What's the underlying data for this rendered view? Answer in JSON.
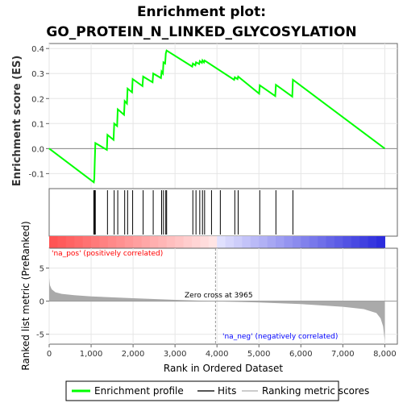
{
  "title_line1": "Enrichment plot:",
  "title_line2": "GO_PROTEIN_N_LINKED_GLYCOSYLATION",
  "chart_data": [
    {
      "type": "line",
      "panel": "enrichment",
      "ylabel": "Enrichment score (ES)",
      "ylim": [
        -0.16,
        0.42
      ],
      "yticks": [
        -0.1,
        0.0,
        0.1,
        0.2,
        0.3,
        0.4
      ],
      "ytick_labels": [
        "-0.1",
        "0.0",
        "0.1",
        "0.2",
        "0.3",
        "0.4"
      ],
      "xlim": [
        0,
        8300
      ],
      "grid": true,
      "zero_line": true,
      "series": [
        {
          "name": "Enrichment profile",
          "color": "#00ff00",
          "x": [
            0,
            1065,
            1075,
            1085,
            1100,
            1375,
            1390,
            1535,
            1550,
            1620,
            1635,
            1785,
            1800,
            1855,
            1870,
            1975,
            1990,
            2225,
            2240,
            2465,
            2480,
            2665,
            2680,
            2710,
            2725,
            2765,
            2780,
            2800,
            3410,
            3425,
            3485,
            3500,
            3575,
            3590,
            3640,
            3655,
            3690,
            3705,
            4410,
            4425,
            4490,
            4505,
            5005,
            5020,
            5390,
            5405,
            5795,
            5810,
            8000
          ],
          "y": [
            0.0,
            -0.135,
            -0.12,
            -0.06,
            0.022,
            -0.005,
            0.055,
            0.035,
            0.1,
            0.09,
            0.157,
            0.135,
            0.19,
            0.18,
            0.24,
            0.225,
            0.278,
            0.25,
            0.288,
            0.265,
            0.3,
            0.282,
            0.308,
            0.3,
            0.345,
            0.34,
            0.38,
            0.392,
            0.328,
            0.34,
            0.333,
            0.345,
            0.338,
            0.35,
            0.343,
            0.353,
            0.345,
            0.352,
            0.275,
            0.285,
            0.278,
            0.288,
            0.22,
            0.253,
            0.21,
            0.255,
            0.208,
            0.275,
            0.0
          ]
        }
      ]
    },
    {
      "type": "scatter",
      "panel": "hits",
      "name": "Hits",
      "color": "#000000",
      "x": [
        1065,
        1075,
        1085,
        1100,
        1390,
        1550,
        1635,
        1800,
        1870,
        1990,
        2240,
        2480,
        2680,
        2725,
        2780,
        2800,
        3425,
        3500,
        3590,
        3655,
        3705,
        3870,
        4080,
        4425,
        4505,
        5020,
        5405,
        5810
      ]
    },
    {
      "type": "area",
      "panel": "ranking",
      "name": "Ranking metric scores",
      "ylabel": "Ranked list metric (PreRanked)",
      "xlabel": "Rank in Ordered Dataset",
      "ylim": [
        -6.5,
        8.0
      ],
      "yticks": [
        -5,
        0,
        5
      ],
      "ytick_labels": [
        "-5",
        "0",
        "5"
      ],
      "xticks": [
        0,
        1000,
        2000,
        3000,
        4000,
        5000,
        6000,
        7000,
        8000
      ],
      "xtick_labels": [
        "0",
        "1,000",
        "2,000",
        "3,000",
        "4,000",
        "5,000",
        "6,000",
        "7,000",
        "8,000"
      ],
      "x": [
        0,
        20,
        60,
        150,
        300,
        600,
        1000,
        2000,
        3000,
        3965,
        5000,
        6000,
        7000,
        7500,
        7800,
        7900,
        7960,
        8000
      ],
      "y": [
        3.5,
        2.4,
        1.8,
        1.35,
        1.1,
        0.9,
        0.72,
        0.45,
        0.2,
        0.0,
        -0.2,
        -0.45,
        -0.85,
        -1.2,
        -1.8,
        -2.6,
        -3.8,
        -6.0
      ],
      "color": "#aaaaaa",
      "zero_cross": 3965,
      "zero_cross_label": "Zero cross at 3965",
      "pos_label": "'na_pos' (positively correlated)",
      "neg_label": "'na_neg' (negatively correlated)",
      "pos_color": "#ff0000",
      "neg_color": "#0000ff"
    }
  ],
  "legend": [
    {
      "label": "Enrichment profile",
      "color": "#00ff00"
    },
    {
      "label": "Hits",
      "color": "#000000"
    },
    {
      "label": "Ranking metric scores",
      "color": "#cccccc"
    }
  ]
}
